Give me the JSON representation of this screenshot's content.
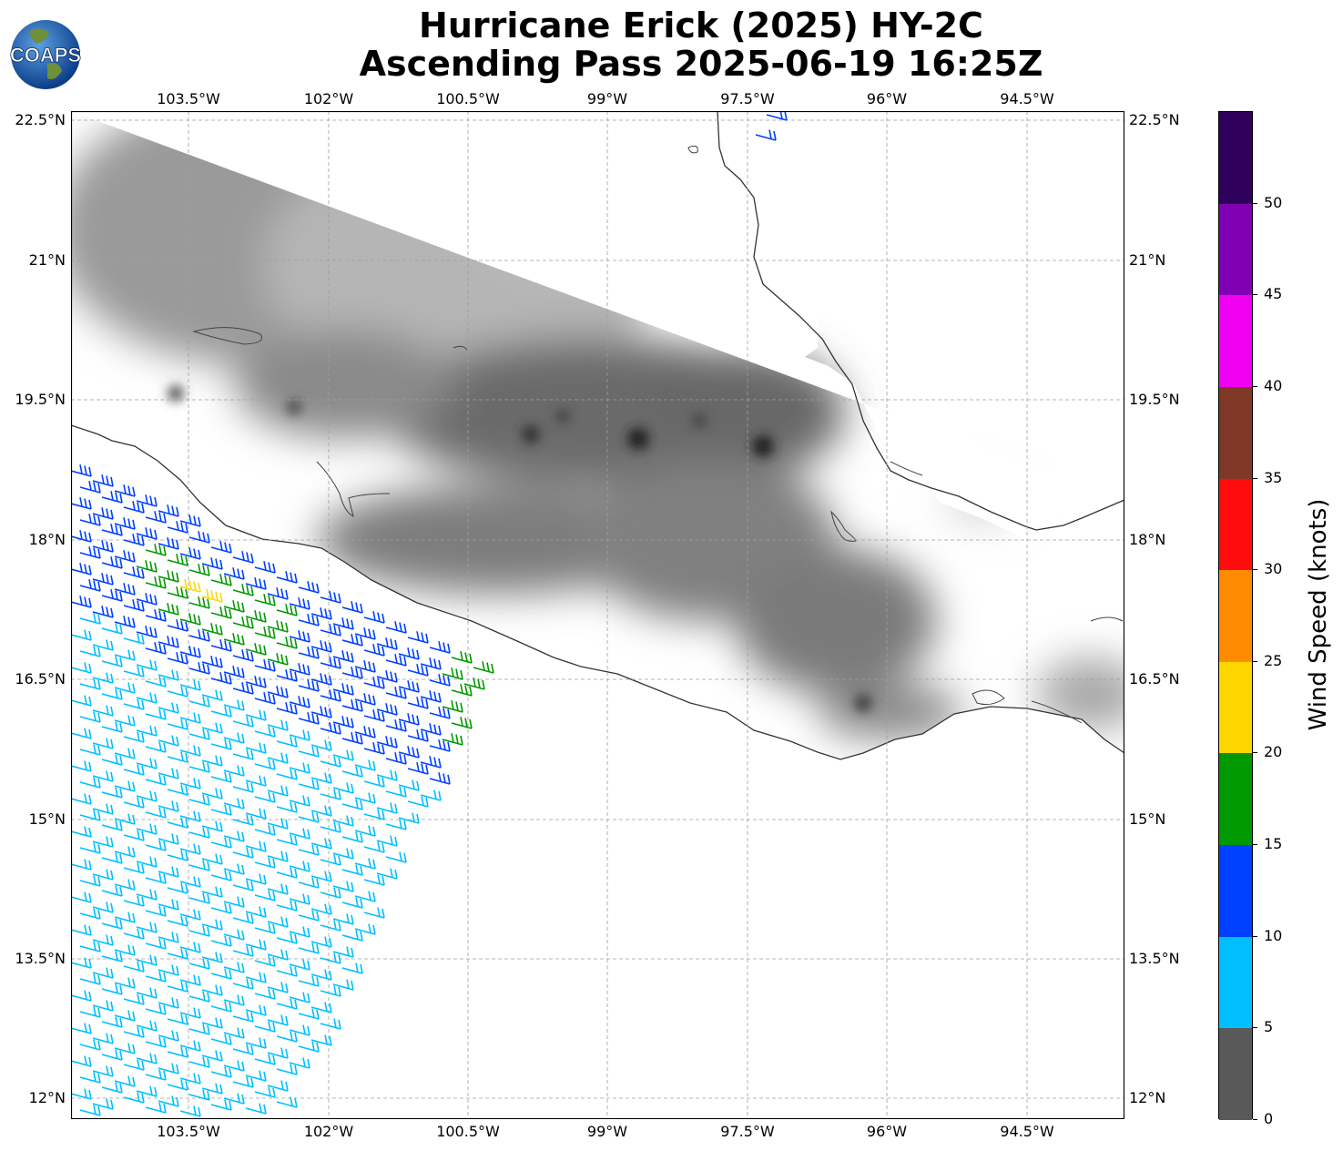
{
  "header": {
    "title_line1": "Hurricane Erick (2025) HY-2C",
    "title_line2": "Ascending Pass 2025-06-19 16:25Z",
    "logo_text": "COAPS"
  },
  "map": {
    "lon_ticks": [
      "103.5°W",
      "102°W",
      "100.5°W",
      "99°W",
      "97.5°W",
      "96°W",
      "94.5°W"
    ],
    "lat_ticks": [
      "22.5°N",
      "21°N",
      "19.5°N",
      "18°N",
      "16.5°N",
      "15°N",
      "13.5°N",
      "12°N"
    ],
    "lon_range": [
      -104.75,
      -93.45
    ],
    "lat_range": [
      11.8,
      22.6
    ],
    "land_color": "#ffffff",
    "terrain_gray": "#707070",
    "coast_color": "#333333"
  },
  "colorbar": {
    "label": "Wind Speed (knots)",
    "ticks": [
      "0",
      "5",
      "10",
      "15",
      "20",
      "25",
      "30",
      "35",
      "40",
      "45",
      "50"
    ],
    "segments": [
      {
        "min": 0,
        "max": 5,
        "color": "#595959"
      },
      {
        "min": 5,
        "max": 10,
        "color": "#00bfff"
      },
      {
        "min": 10,
        "max": 15,
        "color": "#0040ff"
      },
      {
        "min": 15,
        "max": 20,
        "color": "#009900"
      },
      {
        "min": 20,
        "max": 25,
        "color": "#ffd700"
      },
      {
        "min": 25,
        "max": 30,
        "color": "#ff8c00"
      },
      {
        "min": 30,
        "max": 35,
        "color": "#ff0d0d"
      },
      {
        "min": 35,
        "max": 40,
        "color": "#803826"
      },
      {
        "min": 40,
        "max": 45,
        "color": "#f000f0"
      },
      {
        "min": 45,
        "max": 50,
        "color": "#8000b3"
      },
      {
        "min": 50,
        "max": 55,
        "color": "#2e005c"
      }
    ]
  }
}
